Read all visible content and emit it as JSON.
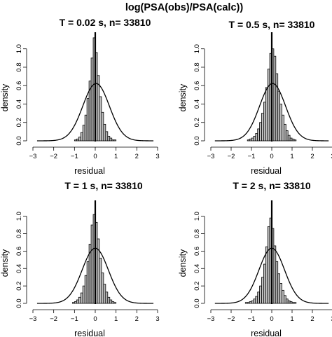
{
  "figure_title": "log(PSA(obs)/PSA(calc))",
  "chart_data": [
    {
      "type": "bar",
      "title": "T = 0.02 s, n= 33810",
      "xlabel": "residual",
      "ylabel": "density",
      "xlim": [
        -3,
        3
      ],
      "ylim": [
        0,
        1.15
      ],
      "xticks": [
        "−3",
        "−2",
        "−1",
        "0",
        "1",
        "2",
        "3"
      ],
      "yticks": [
        "0.0",
        "0.2",
        "0.4",
        "0.6",
        "0.8",
        "1.0"
      ],
      "bin_width": 0.1,
      "bin_start": -1.0,
      "values": [
        0.01,
        0.02,
        0.04,
        0.09,
        0.17,
        0.28,
        0.46,
        0.65,
        0.9,
        1.12,
        0.96,
        0.71,
        0.48,
        0.31,
        0.18,
        0.1,
        0.05,
        0.03,
        0.01,
        0.01
      ],
      "normal_curve": {
        "mean": 0.04,
        "sd": 0.64
      },
      "vline": 0
    },
    {
      "type": "bar",
      "title": "T = 0.5 s, n= 33810",
      "xlabel": "residual",
      "ylabel": "density",
      "xlim": [
        -3,
        3
      ],
      "ylim": [
        0,
        1.15
      ],
      "xticks": [
        "−3",
        "−2",
        "−1",
        "0",
        "1",
        "2",
        "3"
      ],
      "yticks": [
        "0.0",
        "0.2",
        "0.4",
        "0.6",
        "0.8",
        "1.0"
      ],
      "bin_width": 0.1,
      "bin_start": -1.2,
      "values": [
        0.01,
        0.02,
        0.03,
        0.05,
        0.08,
        0.13,
        0.2,
        0.3,
        0.42,
        0.58,
        0.78,
        0.95,
        1.0,
        0.92,
        0.73,
        0.54,
        0.4,
        0.28,
        0.18,
        0.11,
        0.06,
        0.03,
        0.02,
        0.01
      ],
      "normal_curve": {
        "mean": 0.04,
        "sd": 0.64
      },
      "vline": 0
    },
    {
      "type": "bar",
      "title": "T = 1 s, n= 33810",
      "xlabel": "residual",
      "ylabel": "density",
      "xlim": [
        -3,
        3
      ],
      "ylim": [
        0,
        1.15
      ],
      "xticks": [
        "−3",
        "−2",
        "−1",
        "0",
        "1",
        "2",
        "3"
      ],
      "yticks": [
        "0.0",
        "0.2",
        "0.4",
        "0.6",
        "0.8",
        "1.0"
      ],
      "bin_width": 0.1,
      "bin_start": -1.1,
      "values": [
        0.01,
        0.02,
        0.04,
        0.07,
        0.12,
        0.2,
        0.32,
        0.48,
        0.68,
        0.9,
        1.02,
        0.93,
        0.74,
        0.52,
        0.35,
        0.22,
        0.13,
        0.07,
        0.04,
        0.02,
        0.01
      ],
      "normal_curve": {
        "mean": 0.0,
        "sd": 0.63
      },
      "vline": 0
    },
    {
      "type": "bar",
      "title": "T = 2 s, n= 33810",
      "xlabel": "residual",
      "ylabel": "density",
      "xlim": [
        -3,
        3
      ],
      "ylim": [
        0,
        1.15
      ],
      "xticks": [
        "−3",
        "−2",
        "−1",
        "0",
        "1",
        "2",
        "3"
      ],
      "yticks": [
        "0.0",
        "0.2",
        "0.4",
        "0.6",
        "0.8",
        "1.0"
      ],
      "bin_width": 0.1,
      "bin_start": -1.3,
      "values": [
        0.01,
        0.01,
        0.02,
        0.03,
        0.05,
        0.08,
        0.13,
        0.2,
        0.3,
        0.45,
        0.65,
        0.88,
        0.98,
        0.86,
        0.66,
        0.48,
        0.34,
        0.23,
        0.15,
        0.09,
        0.05,
        0.03,
        0.02,
        0.01,
        0.01
      ],
      "normal_curve": {
        "mean": 0.0,
        "sd": 0.63
      },
      "vline": 0
    }
  ]
}
